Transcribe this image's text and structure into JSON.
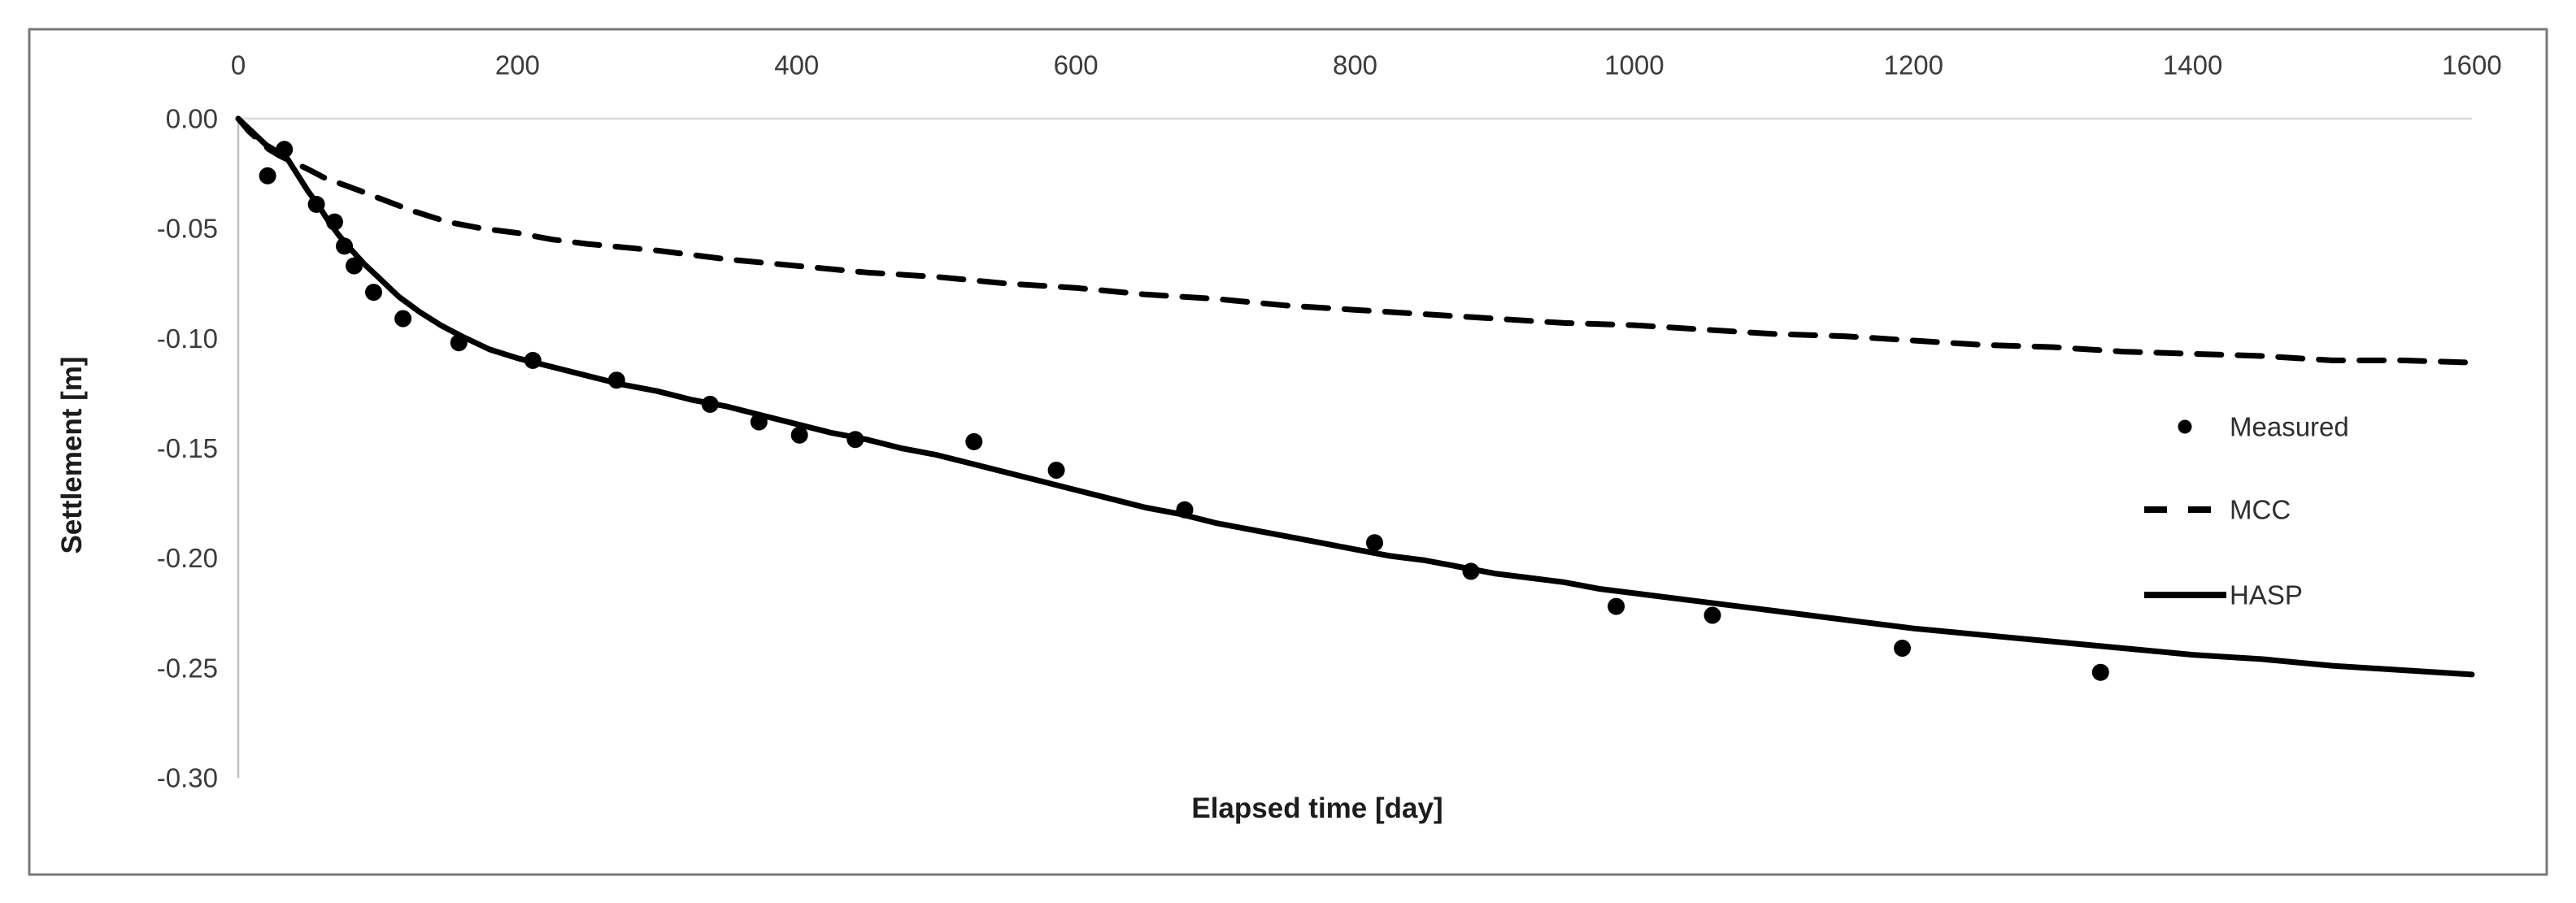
{
  "figure": {
    "background_color": "#ffffff",
    "frame_color": "#7a7a7a",
    "axis_line_color": "#bfbfbf",
    "gridline_color": "#d9d9d9",
    "tick_text_color": "#3b3b3b",
    "series_color": "#000000"
  },
  "chart_data": {
    "type": "scatter+line",
    "title": "",
    "xlabel": "Elapsed time [day]",
    "ylabel": "Settlement [m]",
    "xlim": [
      0,
      1600
    ],
    "ylim": [
      -0.3,
      0.0
    ],
    "x_tick_values": [
      0,
      200,
      400,
      600,
      800,
      1000,
      1200,
      1400,
      1600
    ],
    "x_tick_labels": [
      "0",
      "200",
      "400",
      "600",
      "800",
      "1000",
      "1200",
      "1400",
      "1600"
    ],
    "y_tick_values": [
      0,
      -0.05,
      -0.1,
      -0.15,
      -0.2,
      -0.25,
      -0.3
    ],
    "y_tick_labels": [
      "0.00",
      "-0.05",
      "-0.10",
      "-0.15",
      "-0.20",
      "-0.25",
      "-0.30"
    ],
    "grid": "horizontal zero-line only",
    "legend_position": "middle-right",
    "series": [
      {
        "name": "Measured",
        "type": "scatter",
        "marker": "filled-circle",
        "color": "#000000",
        "points": [
          [
            21,
            -0.026
          ],
          [
            33,
            -0.014
          ],
          [
            56,
            -0.039
          ],
          [
            69,
            -0.047
          ],
          [
            76,
            -0.058
          ],
          [
            83,
            -0.067
          ],
          [
            97,
            -0.079
          ],
          [
            118,
            -0.091
          ],
          [
            158,
            -0.102
          ],
          [
            211,
            -0.11
          ],
          [
            271,
            -0.119
          ],
          [
            338,
            -0.13
          ],
          [
            373,
            -0.138
          ],
          [
            402,
            -0.144
          ],
          [
            442,
            -0.146
          ],
          [
            527,
            -0.147
          ],
          [
            586,
            -0.16
          ],
          [
            678,
            -0.178
          ],
          [
            814,
            -0.193
          ],
          [
            883,
            -0.206
          ],
          [
            987,
            -0.222
          ],
          [
            1056,
            -0.226
          ],
          [
            1192,
            -0.241
          ],
          [
            1334,
            -0.252
          ]
        ]
      },
      {
        "name": "MCC",
        "type": "line",
        "style": "dashed",
        "color": "#000000",
        "x": [
          0,
          8,
          15,
          22,
          30,
          40,
          50,
          62,
          75,
          88,
          100,
          125,
          150,
          175,
          200,
          225,
          250,
          300,
          350,
          400,
          450,
          500,
          550,
          600,
          650,
          700,
          750,
          800,
          850,
          900,
          950,
          1000,
          1050,
          1100,
          1150,
          1200,
          1250,
          1300,
          1350,
          1400,
          1450,
          1500,
          1550,
          1600
        ],
        "y": [
          0,
          -0.006,
          -0.01,
          -0.014,
          -0.017,
          -0.02,
          -0.023,
          -0.027,
          -0.03,
          -0.033,
          -0.036,
          -0.042,
          -0.047,
          -0.05,
          -0.052,
          -0.055,
          -0.057,
          -0.06,
          -0.064,
          -0.067,
          -0.07,
          -0.072,
          -0.075,
          -0.077,
          -0.08,
          -0.082,
          -0.085,
          -0.087,
          -0.089,
          -0.091,
          -0.093,
          -0.094,
          -0.096,
          -0.098,
          -0.099,
          -0.101,
          -0.103,
          -0.104,
          -0.106,
          -0.107,
          -0.108,
          -0.11,
          -0.11,
          -0.111
        ]
      },
      {
        "name": "HASP",
        "type": "line",
        "style": "solid",
        "color": "#000000",
        "x": [
          0,
          10,
          20,
          28,
          35,
          42,
          50,
          58,
          65,
          72,
          80,
          90,
          100,
          115,
          130,
          145,
          160,
          180,
          200,
          225,
          250,
          275,
          300,
          325,
          350,
          375,
          400,
          425,
          450,
          475,
          500,
          525,
          550,
          575,
          600,
          625,
          650,
          675,
          700,
          725,
          750,
          775,
          800,
          825,
          850,
          875,
          900,
          925,
          950,
          975,
          1000,
          1050,
          1100,
          1150,
          1200,
          1250,
          1300,
          1350,
          1400,
          1450,
          1500,
          1550,
          1600
        ],
        "y": [
          0,
          -0.006,
          -0.012,
          -0.015,
          -0.018,
          -0.025,
          -0.033,
          -0.04,
          -0.047,
          -0.053,
          -0.059,
          -0.066,
          -0.072,
          -0.081,
          -0.088,
          -0.094,
          -0.099,
          -0.105,
          -0.109,
          -0.113,
          -0.117,
          -0.121,
          -0.124,
          -0.128,
          -0.131,
          -0.135,
          -0.139,
          -0.143,
          -0.146,
          -0.15,
          -0.153,
          -0.157,
          -0.161,
          -0.165,
          -0.169,
          -0.173,
          -0.177,
          -0.18,
          -0.184,
          -0.187,
          -0.19,
          -0.193,
          -0.196,
          -0.199,
          -0.201,
          -0.204,
          -0.207,
          -0.209,
          -0.211,
          -0.214,
          -0.216,
          -0.22,
          -0.224,
          -0.228,
          -0.232,
          -0.235,
          -0.238,
          -0.241,
          -0.244,
          -0.246,
          -0.249,
          -0.251,
          -0.253
        ]
      }
    ],
    "legend": [
      {
        "label": "Measured",
        "marker": "dot"
      },
      {
        "label": "MCC",
        "marker": "dashed-line"
      },
      {
        "label": "HASP",
        "marker": "solid-line"
      }
    ]
  }
}
